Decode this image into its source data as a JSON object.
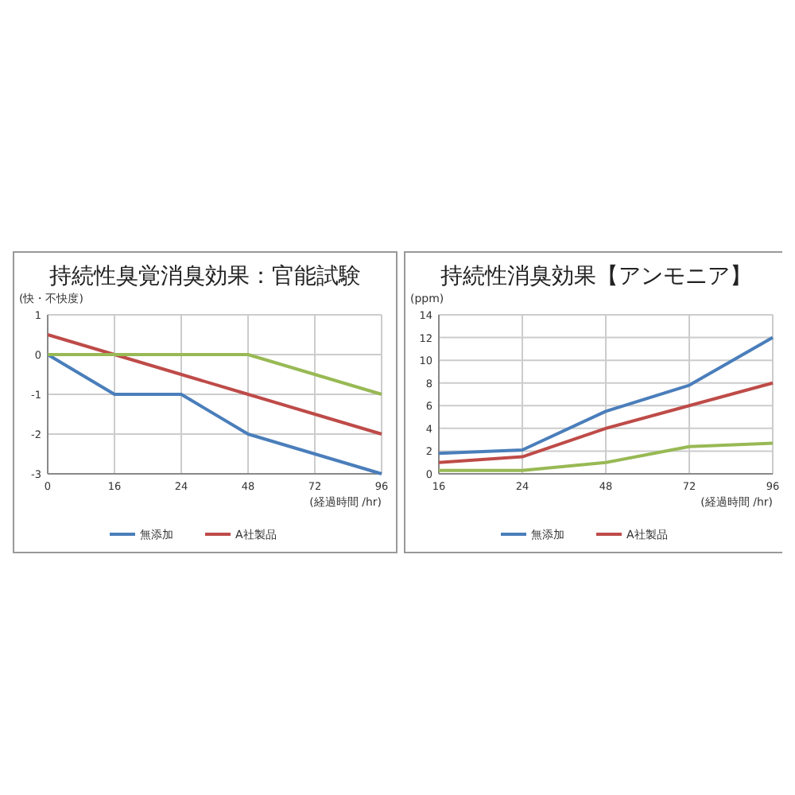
{
  "chart_data": [
    {
      "type": "line",
      "title": "持続性臭覚消臭効果：官能試験",
      "ylabel": "(快・不快度)",
      "xlabel": "(経過時間 /hr)",
      "categories": [
        "0",
        "16",
        "24",
        "48",
        "72",
        "96"
      ],
      "ylim": [
        -3,
        1
      ],
      "yticks": [
        -3,
        -2,
        -1,
        0,
        1
      ],
      "grid": true,
      "legend": "bottom",
      "marker": "none",
      "series": [
        {
          "name": "無添加",
          "color": "#4a7ebb",
          "values": [
            0,
            -1,
            -1,
            -2,
            -2.5,
            -3
          ]
        },
        {
          "name": "A社製品",
          "color": "#be4b48",
          "values": [
            0.5,
            0,
            -0.5,
            -1,
            -1.5,
            -2
          ]
        },
        {
          "color": "#98b954",
          "values": [
            0,
            0,
            0,
            0,
            -0.5,
            -1
          ]
        }
      ]
    },
    {
      "type": "line",
      "title": "持続性消臭効果【アンモニア】",
      "ylabel": "(ppm)",
      "xlabel": "(経過時間 /hr)",
      "categories": [
        "16",
        "24",
        "48",
        "72",
        "96"
      ],
      "ylim": [
        0,
        14
      ],
      "yticks": [
        0,
        2,
        4,
        6,
        8,
        10,
        12,
        14
      ],
      "grid": true,
      "legend": "bottom",
      "marker": "none",
      "series": [
        {
          "name": "無添加",
          "color": "#4a7ebb",
          "values": [
            1.8,
            2.1,
            5.5,
            7.8,
            12
          ]
        },
        {
          "name": "A社製品",
          "color": "#be4b48",
          "values": [
            1.0,
            1.5,
            4,
            6,
            8
          ]
        },
        {
          "color": "#98b954",
          "values": [
            0.3,
            0.3,
            1.0,
            2.4,
            2.7
          ]
        }
      ]
    }
  ]
}
